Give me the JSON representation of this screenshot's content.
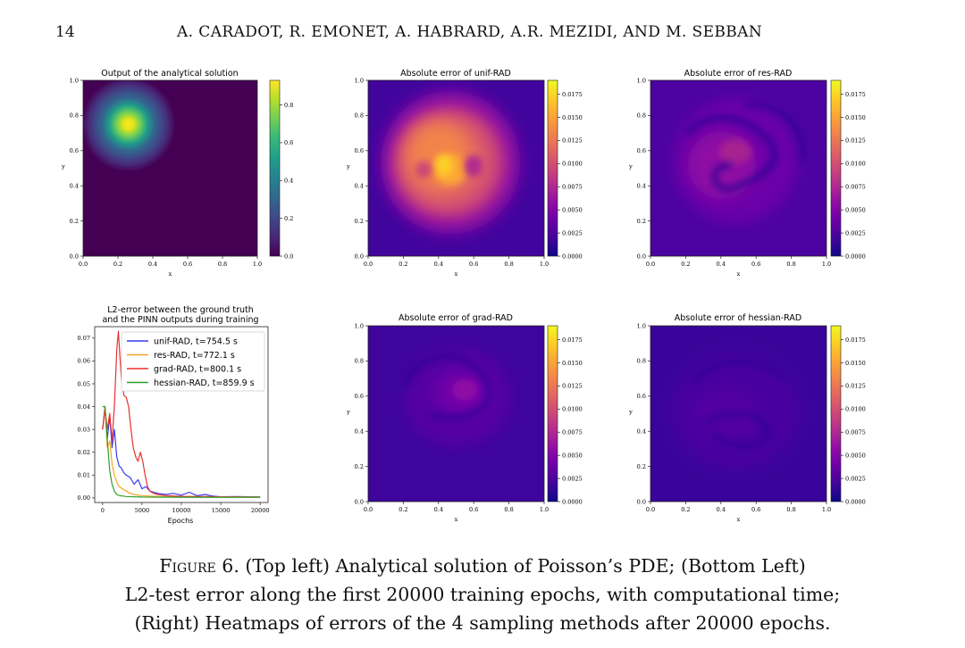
{
  "header": {
    "page_number": "14",
    "authors": "A. CARADOT, R. EMONET, A. HABRARD, A.R. MEZIDI, AND M. SEBBAN"
  },
  "colormaps": {
    "viridis": [
      "#440154",
      "#482878",
      "#3e4a89",
      "#31688e",
      "#26828e",
      "#1f9e89",
      "#35b779",
      "#6ece58",
      "#b5de2b",
      "#fde725"
    ],
    "plasma": [
      "#0d0887",
      "#41049d",
      "#6a00a8",
      "#8f0da4",
      "#b12a90",
      "#cc4778",
      "#e16462",
      "#f2844b",
      "#fca636",
      "#fcce25",
      "#f0f921"
    ]
  },
  "panels": [
    {
      "id": "analytical",
      "title": "Output of the analytical solution",
      "xlabel": "x",
      "ylabel": "y",
      "xticks": [
        "0.0",
        "0.2",
        "0.4",
        "0.6",
        "0.8",
        "1.0"
      ],
      "yticks": [
        "0.0",
        "0.2",
        "0.4",
        "0.6",
        "0.8",
        "1.0"
      ],
      "colormap": "viridis",
      "colorbar_ticks": [
        "0.0",
        "0.2",
        "0.4",
        "0.6",
        "0.8"
      ]
    },
    {
      "id": "unif-rad",
      "title": "Absolute error of unif-RAD",
      "xlabel": "x",
      "ylabel": "y",
      "xticks": [
        "0.0",
        "0.2",
        "0.4",
        "0.6",
        "0.8",
        "1.0"
      ],
      "yticks": [
        "0.0",
        "0.2",
        "0.4",
        "0.6",
        "0.8",
        "1.0"
      ],
      "colormap": "plasma",
      "colorbar_ticks": [
        "0.0000",
        "0.0025",
        "0.0050",
        "0.0075",
        "0.0100",
        "0.0125",
        "0.0150",
        "0.0175"
      ]
    },
    {
      "id": "res-rad",
      "title": "Absolute error of res-RAD",
      "xlabel": "x",
      "ylabel": "y",
      "xticks": [
        "0.0",
        "0.2",
        "0.4",
        "0.6",
        "0.8",
        "1.0"
      ],
      "yticks": [
        "0.0",
        "0.2",
        "0.4",
        "0.6",
        "0.8",
        "1.0"
      ],
      "colormap": "plasma",
      "colorbar_ticks": [
        "0.0000",
        "0.0025",
        "0.0050",
        "0.0075",
        "0.0100",
        "0.0125",
        "0.0150",
        "0.0175"
      ]
    },
    {
      "id": "grad-rad",
      "title": "Absolute error of grad-RAD",
      "xlabel": "x",
      "ylabel": "y",
      "xticks": [
        "0.0",
        "0.2",
        "0.4",
        "0.6",
        "0.8",
        "1.0"
      ],
      "yticks": [
        "0.0",
        "0.2",
        "0.4",
        "0.6",
        "0.8",
        "1.0"
      ],
      "colormap": "plasma",
      "colorbar_ticks": [
        "0.0000",
        "0.0025",
        "0.0050",
        "0.0075",
        "0.0100",
        "0.0125",
        "0.0150",
        "0.0175"
      ]
    },
    {
      "id": "hessian-rad",
      "title": "Absolute error of hessian-RAD",
      "xlabel": "x",
      "ylabel": "y",
      "xticks": [
        "0.0",
        "0.2",
        "0.4",
        "0.6",
        "0.8",
        "1.0"
      ],
      "yticks": [
        "0.0",
        "0.2",
        "0.4",
        "0.6",
        "0.8",
        "1.0"
      ],
      "colormap": "plasma",
      "colorbar_ticks": [
        "0.0000",
        "0.0025",
        "0.0050",
        "0.0075",
        "0.0100",
        "0.0125",
        "0.0150",
        "0.0175"
      ]
    }
  ],
  "chart_data": {
    "type": "line",
    "title_lines": [
      "L2-error between the ground truth",
      "and the PINN outputs during training"
    ],
    "xlabel": "Epochs",
    "ylabel": "",
    "xlim": [
      -1000,
      21000
    ],
    "ylim": [
      -0.002,
      0.075
    ],
    "xticks": [
      0,
      5000,
      10000,
      15000,
      20000
    ],
    "yticks": [
      0.0,
      0.01,
      0.02,
      0.03,
      0.04,
      0.05,
      0.06,
      0.07
    ],
    "ytick_labels": [
      "0.00",
      "0.01",
      "0.02",
      "0.03",
      "0.04",
      "0.05",
      "0.06",
      "0.07"
    ],
    "legend_position": "upper right",
    "grid": false,
    "series": [
      {
        "name": "unif-RAD, t=754.5 s",
        "color": "#3a3af0",
        "x": [
          0,
          300,
          600,
          900,
          1200,
          1500,
          1800,
          2100,
          2400,
          2700,
          3000,
          3500,
          4000,
          4500,
          5000,
          5500,
          6000,
          7000,
          8000,
          9000,
          10000,
          11000,
          12000,
          13000,
          14000,
          15000,
          17000,
          20000
        ],
        "y": [
          0.03,
          0.04,
          0.026,
          0.036,
          0.022,
          0.03,
          0.018,
          0.014,
          0.013,
          0.011,
          0.01,
          0.009,
          0.006,
          0.008,
          0.004,
          0.005,
          0.003,
          0.002,
          0.0015,
          0.002,
          0.0012,
          0.0025,
          0.001,
          0.0015,
          0.0008,
          0.0005,
          0.0006,
          0.0004
        ]
      },
      {
        "name": "res-RAD, t=772.1 s",
        "color": "#f5a623",
        "x": [
          0,
          300,
          600,
          900,
          1200,
          1500,
          1800,
          2100,
          2500,
          3000,
          3500,
          4000,
          5000,
          6000,
          8000,
          10000,
          15000,
          20000
        ],
        "y": [
          0.03,
          0.04,
          0.022,
          0.025,
          0.015,
          0.01,
          0.007,
          0.005,
          0.004,
          0.003,
          0.002,
          0.0015,
          0.001,
          0.0008,
          0.0005,
          0.0004,
          0.0003,
          0.0003
        ]
      },
      {
        "name": "grad-RAD, t=800.1 s",
        "color": "#e8312f",
        "x": [
          0,
          300,
          600,
          900,
          1200,
          1500,
          1800,
          2000,
          2200,
          2400,
          2700,
          3000,
          3300,
          3600,
          3900,
          4200,
          4500,
          4800,
          5100,
          5400,
          5700,
          6000,
          6500,
          7000,
          8000,
          10000,
          15000,
          20000
        ],
        "y": [
          0.03,
          0.039,
          0.03,
          0.037,
          0.025,
          0.04,
          0.065,
          0.073,
          0.062,
          0.052,
          0.045,
          0.044,
          0.04,
          0.03,
          0.022,
          0.018,
          0.016,
          0.02,
          0.016,
          0.01,
          0.005,
          0.003,
          0.002,
          0.0015,
          0.001,
          0.0007,
          0.0005,
          0.0004
        ]
      },
      {
        "name": "hessian-RAD, t=859.9 s",
        "color": "#2ca02c",
        "x": [
          0,
          300,
          600,
          900,
          1200,
          1500,
          1800,
          2200,
          3000,
          5000,
          10000,
          15000,
          20000
        ],
        "y": [
          0.04,
          0.04,
          0.025,
          0.012,
          0.006,
          0.003,
          0.0015,
          0.001,
          0.0006,
          0.0004,
          0.0003,
          0.0003,
          0.0003
        ]
      }
    ]
  },
  "caption": {
    "figure_label": "Figure 6.",
    "line1": "(Top left) Analytical solution of Poisson’s PDE; (Bottom Left)",
    "line2": "L2-test error along the first 20000 training epochs, with computational time;",
    "line3": "(Right) Heatmaps of errors of the 4 sampling methods after 20000 epochs."
  }
}
